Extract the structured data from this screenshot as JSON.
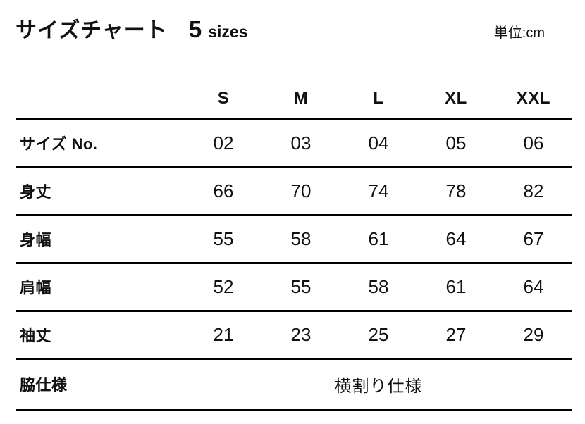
{
  "header": {
    "title": "サイズチャート",
    "size_count": "5",
    "size_count_suffix": "sizes",
    "unit_label": "単位:cm"
  },
  "chart_data": {
    "type": "table",
    "title": "サイズチャート",
    "subtitle": "5 sizes",
    "unit": "単位:cm",
    "columns": [
      "S",
      "M",
      "L",
      "XL",
      "XXL"
    ],
    "rows": [
      {
        "label": "サイズ No.",
        "values": [
          "02",
          "03",
          "04",
          "05",
          "06"
        ]
      },
      {
        "label": "身丈",
        "values": [
          "66",
          "70",
          "74",
          "78",
          "82"
        ]
      },
      {
        "label": "身幅",
        "values": [
          "55",
          "58",
          "61",
          "64",
          "67"
        ]
      },
      {
        "label": "肩幅",
        "values": [
          "52",
          "55",
          "58",
          "61",
          "64"
        ]
      },
      {
        "label": "袖丈",
        "values": [
          "21",
          "23",
          "25",
          "27",
          "29"
        ]
      },
      {
        "label": "脇仕様",
        "span_value": "横割り仕様"
      }
    ],
    "colors": {
      "text": "#111111",
      "line": "#000000",
      "background": "#ffffff"
    }
  }
}
